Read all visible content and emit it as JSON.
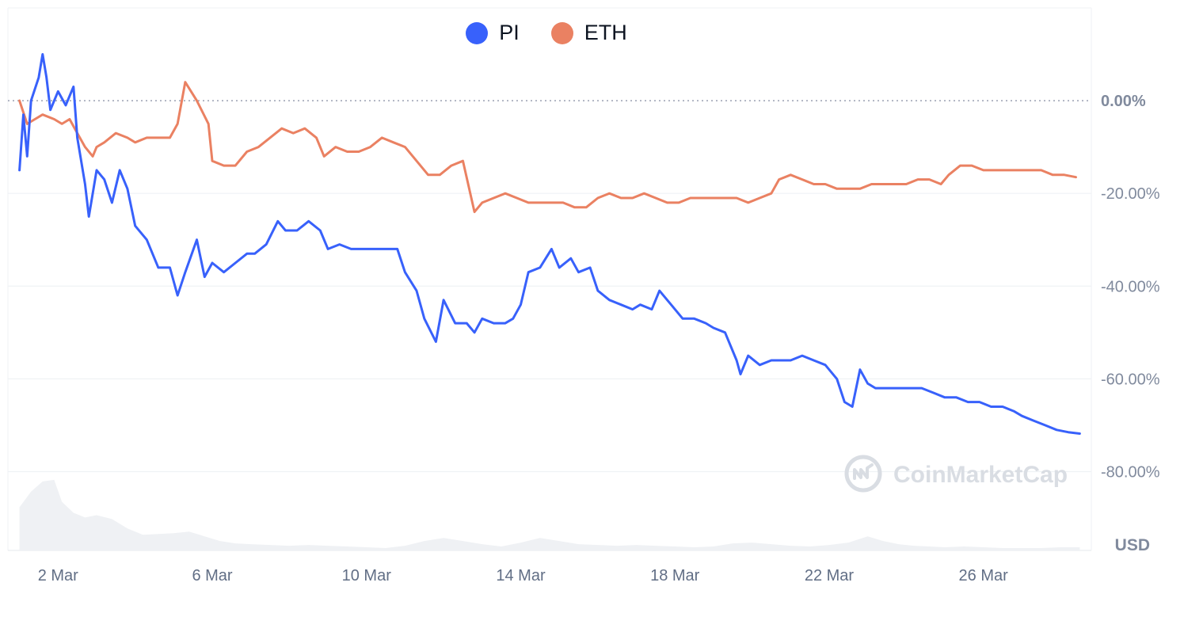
{
  "chart_data": {
    "type": "line",
    "watermark": "CoinMarketCap",
    "unit_label": "USD",
    "legend_position": "top-center",
    "x_ticks": [
      "2 Mar",
      "6 Mar",
      "10 Mar",
      "14 Mar",
      "18 Mar",
      "22 Mar",
      "26 Mar"
    ],
    "y_ticks": [
      "0.00%",
      "-20.00%",
      "-40.00%",
      "-60.00%",
      "-80.00%"
    ],
    "y_tick_values": [
      0,
      -20,
      -40,
      -60,
      -80
    ],
    "ylim": [
      -97,
      20
    ],
    "xlim": [
      -0.3,
      27.8
    ],
    "grid": true,
    "zero_line": "dotted",
    "series": [
      {
        "name": "PI",
        "color": "#3861fb",
        "points": [
          [
            0,
            -15
          ],
          [
            0.1,
            -3
          ],
          [
            0.2,
            -12
          ],
          [
            0.3,
            0
          ],
          [
            0.5,
            5
          ],
          [
            0.6,
            10
          ],
          [
            0.7,
            5
          ],
          [
            0.8,
            -2
          ],
          [
            1.0,
            2
          ],
          [
            1.2,
            -1
          ],
          [
            1.4,
            3
          ],
          [
            1.5,
            -8
          ],
          [
            1.7,
            -18
          ],
          [
            1.8,
            -25
          ],
          [
            2.0,
            -15
          ],
          [
            2.2,
            -17
          ],
          [
            2.4,
            -22
          ],
          [
            2.6,
            -15
          ],
          [
            2.8,
            -19
          ],
          [
            3.0,
            -27
          ],
          [
            3.3,
            -30
          ],
          [
            3.6,
            -36
          ],
          [
            3.9,
            -36
          ],
          [
            4.1,
            -42
          ],
          [
            4.3,
            -37
          ],
          [
            4.6,
            -30
          ],
          [
            4.8,
            -38
          ],
          [
            5.0,
            -35
          ],
          [
            5.3,
            -37
          ],
          [
            5.6,
            -35
          ],
          [
            5.9,
            -33
          ],
          [
            6.1,
            -33
          ],
          [
            6.4,
            -31
          ],
          [
            6.7,
            -26
          ],
          [
            6.9,
            -28
          ],
          [
            7.2,
            -28
          ],
          [
            7.5,
            -26
          ],
          [
            7.8,
            -28
          ],
          [
            8.0,
            -32
          ],
          [
            8.3,
            -31
          ],
          [
            8.6,
            -32
          ],
          [
            9.0,
            -32
          ],
          [
            9.4,
            -32
          ],
          [
            9.8,
            -32
          ],
          [
            10.0,
            -37
          ],
          [
            10.3,
            -41
          ],
          [
            10.5,
            -47
          ],
          [
            10.8,
            -52
          ],
          [
            11.0,
            -43
          ],
          [
            11.3,
            -48
          ],
          [
            11.6,
            -48
          ],
          [
            11.8,
            -50
          ],
          [
            12.0,
            -47
          ],
          [
            12.3,
            -48
          ],
          [
            12.6,
            -48
          ],
          [
            12.8,
            -47
          ],
          [
            13.0,
            -44
          ],
          [
            13.2,
            -37
          ],
          [
            13.5,
            -36
          ],
          [
            13.8,
            -32
          ],
          [
            14.0,
            -36
          ],
          [
            14.3,
            -34
          ],
          [
            14.5,
            -37
          ],
          [
            14.8,
            -36
          ],
          [
            15.0,
            -41
          ],
          [
            15.3,
            -43
          ],
          [
            15.6,
            -44
          ],
          [
            15.9,
            -45
          ],
          [
            16.1,
            -44
          ],
          [
            16.4,
            -45
          ],
          [
            16.6,
            -41
          ],
          [
            16.9,
            -44
          ],
          [
            17.2,
            -47
          ],
          [
            17.5,
            -47
          ],
          [
            17.8,
            -48
          ],
          [
            18.0,
            -49
          ],
          [
            18.3,
            -50
          ],
          [
            18.6,
            -56
          ],
          [
            18.7,
            -59
          ],
          [
            18.9,
            -55
          ],
          [
            19.2,
            -57
          ],
          [
            19.5,
            -56
          ],
          [
            19.8,
            -56
          ],
          [
            20.0,
            -56
          ],
          [
            20.3,
            -55
          ],
          [
            20.6,
            -56
          ],
          [
            20.9,
            -57
          ],
          [
            21.2,
            -60
          ],
          [
            21.4,
            -65
          ],
          [
            21.6,
            -66
          ],
          [
            21.8,
            -58
          ],
          [
            22.0,
            -61
          ],
          [
            22.2,
            -62
          ],
          [
            22.5,
            -62
          ],
          [
            22.8,
            -62
          ],
          [
            23.1,
            -62
          ],
          [
            23.4,
            -62
          ],
          [
            23.7,
            -63
          ],
          [
            24.0,
            -64
          ],
          [
            24.3,
            -64
          ],
          [
            24.6,
            -65
          ],
          [
            24.9,
            -65
          ],
          [
            25.2,
            -66
          ],
          [
            25.5,
            -66
          ],
          [
            25.8,
            -67
          ],
          [
            26.0,
            -68
          ],
          [
            26.3,
            -69
          ],
          [
            26.6,
            -70
          ],
          [
            26.9,
            -71
          ],
          [
            27.2,
            -71.5
          ],
          [
            27.5,
            -71.8
          ]
        ]
      },
      {
        "name": "ETH",
        "color": "#ea8162",
        "points": [
          [
            0,
            0
          ],
          [
            0.2,
            -5
          ],
          [
            0.4,
            -4
          ],
          [
            0.6,
            -3
          ],
          [
            0.9,
            -4
          ],
          [
            1.1,
            -5
          ],
          [
            1.3,
            -4
          ],
          [
            1.5,
            -7
          ],
          [
            1.7,
            -10
          ],
          [
            1.9,
            -12
          ],
          [
            2.0,
            -10
          ],
          [
            2.2,
            -9
          ],
          [
            2.5,
            -7
          ],
          [
            2.8,
            -8
          ],
          [
            3.0,
            -9
          ],
          [
            3.3,
            -8
          ],
          [
            3.6,
            -8
          ],
          [
            3.9,
            -8
          ],
          [
            4.1,
            -5
          ],
          [
            4.3,
            4
          ],
          [
            4.6,
            0
          ],
          [
            4.9,
            -5
          ],
          [
            5.0,
            -13
          ],
          [
            5.3,
            -14
          ],
          [
            5.6,
            -14
          ],
          [
            5.9,
            -11
          ],
          [
            6.2,
            -10
          ],
          [
            6.5,
            -8
          ],
          [
            6.8,
            -6
          ],
          [
            7.1,
            -7
          ],
          [
            7.4,
            -6
          ],
          [
            7.7,
            -8
          ],
          [
            7.9,
            -12
          ],
          [
            8.2,
            -10
          ],
          [
            8.5,
            -11
          ],
          [
            8.8,
            -11
          ],
          [
            9.1,
            -10
          ],
          [
            9.4,
            -8
          ],
          [
            9.7,
            -9
          ],
          [
            10.0,
            -10
          ],
          [
            10.3,
            -13
          ],
          [
            10.6,
            -16
          ],
          [
            10.9,
            -16
          ],
          [
            11.2,
            -14
          ],
          [
            11.5,
            -13
          ],
          [
            11.8,
            -24
          ],
          [
            12.0,
            -22
          ],
          [
            12.3,
            -21
          ],
          [
            12.6,
            -20
          ],
          [
            12.9,
            -21
          ],
          [
            13.2,
            -22
          ],
          [
            13.5,
            -22
          ],
          [
            13.8,
            -22
          ],
          [
            14.1,
            -22
          ],
          [
            14.4,
            -23
          ],
          [
            14.7,
            -23
          ],
          [
            15.0,
            -21
          ],
          [
            15.3,
            -20
          ],
          [
            15.6,
            -21
          ],
          [
            15.9,
            -21
          ],
          [
            16.2,
            -20
          ],
          [
            16.5,
            -21
          ],
          [
            16.8,
            -22
          ],
          [
            17.1,
            -22
          ],
          [
            17.4,
            -21
          ],
          [
            17.7,
            -21
          ],
          [
            18.0,
            -21
          ],
          [
            18.3,
            -21
          ],
          [
            18.6,
            -21
          ],
          [
            18.9,
            -22
          ],
          [
            19.2,
            -21
          ],
          [
            19.5,
            -20
          ],
          [
            19.7,
            -17
          ],
          [
            20.0,
            -16
          ],
          [
            20.3,
            -17
          ],
          [
            20.6,
            -18
          ],
          [
            20.9,
            -18
          ],
          [
            21.2,
            -19
          ],
          [
            21.5,
            -19
          ],
          [
            21.8,
            -19
          ],
          [
            22.1,
            -18
          ],
          [
            22.4,
            -18
          ],
          [
            22.7,
            -18
          ],
          [
            23.0,
            -18
          ],
          [
            23.3,
            -17
          ],
          [
            23.6,
            -17
          ],
          [
            23.9,
            -18
          ],
          [
            24.1,
            -16
          ],
          [
            24.4,
            -14
          ],
          [
            24.7,
            -14
          ],
          [
            25.0,
            -15
          ],
          [
            25.3,
            -15
          ],
          [
            25.6,
            -15
          ],
          [
            25.9,
            -15
          ],
          [
            26.2,
            -15
          ],
          [
            26.5,
            -15
          ],
          [
            26.8,
            -16
          ],
          [
            27.1,
            -16
          ],
          [
            27.4,
            -16.5
          ]
        ]
      }
    ],
    "volume": {
      "ylim": [
        0,
        100
      ],
      "points": [
        [
          0,
          55
        ],
        [
          0.3,
          75
        ],
        [
          0.6,
          88
        ],
        [
          0.9,
          90
        ],
        [
          1.1,
          62
        ],
        [
          1.4,
          48
        ],
        [
          1.7,
          42
        ],
        [
          2.0,
          45
        ],
        [
          2.4,
          40
        ],
        [
          2.8,
          28
        ],
        [
          3.2,
          20
        ],
        [
          3.6,
          21
        ],
        [
          4.0,
          22
        ],
        [
          4.4,
          24
        ],
        [
          4.8,
          18
        ],
        [
          5.2,
          12
        ],
        [
          5.6,
          9
        ],
        [
          6.0,
          8
        ],
        [
          6.5,
          7
        ],
        [
          7.0,
          6
        ],
        [
          7.5,
          7
        ],
        [
          8.0,
          6
        ],
        [
          8.5,
          5
        ],
        [
          9.0,
          4
        ],
        [
          9.5,
          3
        ],
        [
          10.0,
          6
        ],
        [
          10.5,
          12
        ],
        [
          11.0,
          16
        ],
        [
          11.5,
          12
        ],
        [
          12.0,
          8
        ],
        [
          12.5,
          5
        ],
        [
          13.0,
          10
        ],
        [
          13.5,
          16
        ],
        [
          14.0,
          12
        ],
        [
          14.5,
          8
        ],
        [
          15.0,
          7
        ],
        [
          15.5,
          6
        ],
        [
          16.0,
          7
        ],
        [
          16.5,
          6
        ],
        [
          17.0,
          5
        ],
        [
          17.5,
          4
        ],
        [
          18.0,
          5
        ],
        [
          18.5,
          9
        ],
        [
          19.0,
          10
        ],
        [
          19.5,
          8
        ],
        [
          20.0,
          6
        ],
        [
          20.5,
          5
        ],
        [
          21.0,
          7
        ],
        [
          21.5,
          10
        ],
        [
          22.0,
          18
        ],
        [
          22.4,
          12
        ],
        [
          22.8,
          8
        ],
        [
          23.2,
          6
        ],
        [
          23.6,
          5
        ],
        [
          24.0,
          4
        ],
        [
          24.5,
          5
        ],
        [
          25.0,
          4
        ],
        [
          25.5,
          3
        ],
        [
          26.0,
          3
        ],
        [
          26.5,
          3
        ],
        [
          27.0,
          4
        ],
        [
          27.5,
          4
        ]
      ]
    }
  }
}
